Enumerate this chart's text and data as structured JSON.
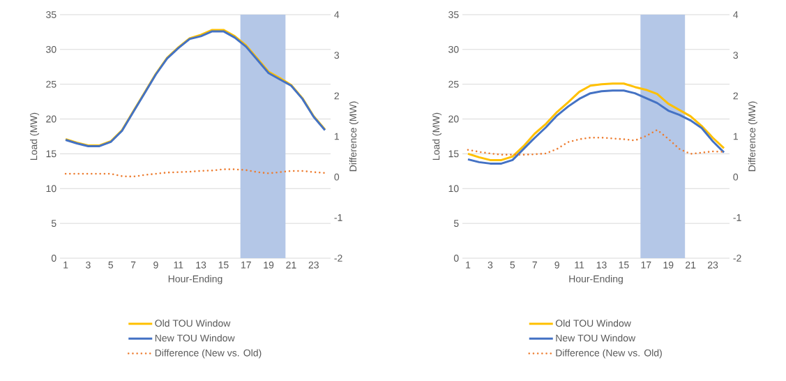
{
  "chart_data": [
    {
      "type": "line",
      "xlabel": "Hour-Ending",
      "ylabel": "Load (MW)",
      "y2label": "Difference (MW)",
      "x": [
        1,
        2,
        3,
        4,
        5,
        6,
        7,
        8,
        9,
        10,
        11,
        12,
        13,
        14,
        15,
        16,
        17,
        18,
        19,
        20,
        21,
        22,
        23,
        24
      ],
      "xlim": [
        0.5,
        24.5
      ],
      "xticks": [
        1,
        3,
        5,
        7,
        9,
        11,
        13,
        15,
        17,
        19,
        21,
        23
      ],
      "ylim": [
        0,
        35
      ],
      "yticks": [
        0,
        5,
        10,
        15,
        20,
        25,
        30,
        35
      ],
      "y2lim": [
        -2,
        4
      ],
      "y2ticks": [
        -2,
        -1,
        0,
        1,
        2,
        3,
        4
      ],
      "grid": "y",
      "legend": "bottom",
      "bands": [
        {
          "axis": "x",
          "from": 16.5,
          "to": 20.5,
          "color": "#b4c7e7"
        }
      ],
      "series": [
        {
          "name": "Old TOU Window",
          "color": "#ffc000",
          "line_style": "solid",
          "values": [
            17.1,
            16.6,
            16.2,
            16.2,
            16.8,
            18.4,
            21.1,
            23.8,
            26.5,
            28.8,
            30.3,
            31.6,
            32.1,
            32.8,
            32.8,
            31.9,
            30.6,
            28.7,
            26.8,
            25.9,
            24.9,
            23.0,
            20.4,
            18.5
          ]
        },
        {
          "name": "New TOU Window",
          "color": "#4472c4",
          "line_style": "solid",
          "values": [
            17.0,
            16.5,
            16.1,
            16.1,
            16.7,
            18.3,
            21.0,
            23.7,
            26.4,
            28.7,
            30.2,
            31.5,
            31.9,
            32.6,
            32.6,
            31.7,
            30.4,
            28.5,
            26.6,
            25.7,
            24.8,
            22.9,
            20.3,
            18.4
          ]
        },
        {
          "name": "Difference (New vs. Old)",
          "color": "#ed7d31",
          "line_style": "dotted",
          "axis": "y2",
          "values": [
            0.08,
            0.08,
            0.08,
            0.08,
            0.08,
            0.02,
            0.01,
            0.05,
            0.08,
            0.11,
            0.12,
            0.13,
            0.15,
            0.16,
            0.19,
            0.19,
            0.17,
            0.12,
            0.09,
            0.12,
            0.15,
            0.15,
            0.12,
            0.1
          ]
        }
      ]
    },
    {
      "type": "line",
      "xlabel": "Hour-Ending",
      "ylabel": "Load (MW)",
      "y2label": "Difference (MW)",
      "x": [
        1,
        2,
        3,
        4,
        5,
        6,
        7,
        8,
        9,
        10,
        11,
        12,
        13,
        14,
        15,
        16,
        17,
        18,
        19,
        20,
        21,
        22,
        23,
        24
      ],
      "xlim": [
        0.5,
        24.5
      ],
      "xticks": [
        1,
        3,
        5,
        7,
        9,
        11,
        13,
        15,
        17,
        19,
        21,
        23
      ],
      "ylim": [
        0,
        35
      ],
      "yticks": [
        0,
        5,
        10,
        15,
        20,
        25,
        30,
        35
      ],
      "y2lim": [
        -2,
        4
      ],
      "y2ticks": [
        -2,
        -1,
        0,
        1,
        2,
        3,
        4
      ],
      "grid": "y",
      "legend": "bottom",
      "bands": [
        {
          "axis": "x",
          "from": 16.5,
          "to": 20.5,
          "color": "#b4c7e7"
        }
      ],
      "series": [
        {
          "name": "Old TOU Window",
          "color": "#ffc000",
          "line_style": "solid",
          "values": [
            15.0,
            14.5,
            14.1,
            14.1,
            14.6,
            16.1,
            17.9,
            19.3,
            21.0,
            22.4,
            23.9,
            24.8,
            25.0,
            25.1,
            25.1,
            24.6,
            24.2,
            23.6,
            22.2,
            21.3,
            20.4,
            19.0,
            17.3,
            15.8
          ]
        },
        {
          "name": "New TOU Window",
          "color": "#4472c4",
          "line_style": "solid",
          "values": [
            14.2,
            13.8,
            13.6,
            13.6,
            14.1,
            15.7,
            17.3,
            18.8,
            20.5,
            21.8,
            22.9,
            23.7,
            24.0,
            24.1,
            24.1,
            23.7,
            23.0,
            22.3,
            21.2,
            20.6,
            19.8,
            18.7,
            16.8,
            15.2
          ]
        },
        {
          "name": "Difference (New vs. Old)",
          "color": "#ed7d31",
          "line_style": "dotted",
          "axis": "y2",
          "values": [
            0.67,
            0.62,
            0.58,
            0.55,
            0.55,
            0.55,
            0.56,
            0.58,
            0.69,
            0.86,
            0.93,
            0.97,
            0.97,
            0.95,
            0.93,
            0.9,
            1.01,
            1.16,
            0.94,
            0.69,
            0.57,
            0.6,
            0.63,
            0.62
          ]
        }
      ]
    }
  ]
}
